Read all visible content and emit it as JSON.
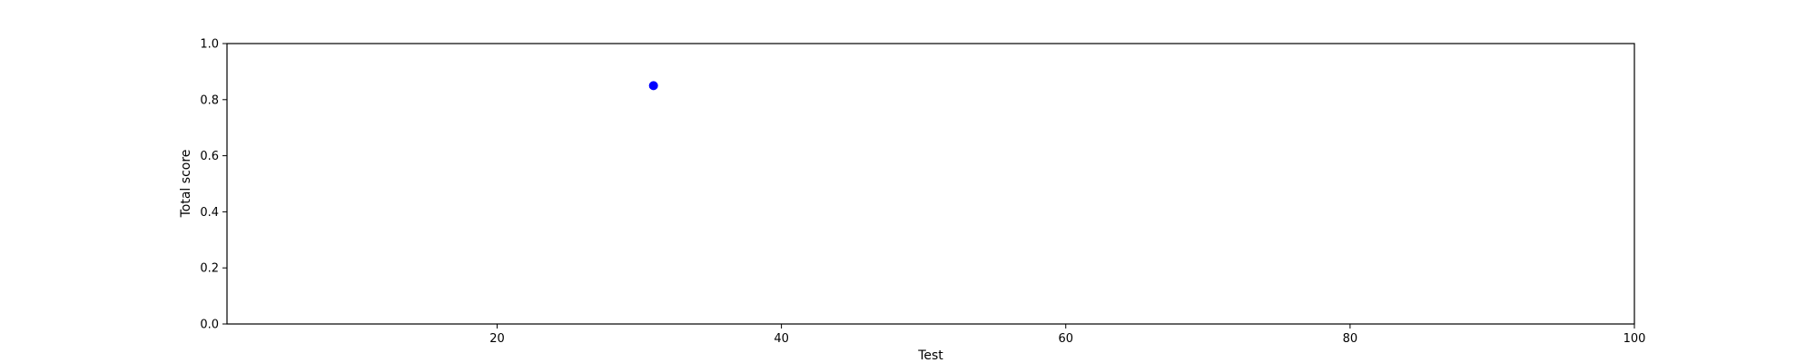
{
  "chart_data": {
    "type": "scatter",
    "title": "",
    "xlabel": "Test",
    "ylabel": "Total score",
    "xlim": [
      1,
      100
    ],
    "ylim": [
      0.0,
      1.0
    ],
    "xticks": [
      20,
      40,
      60,
      80,
      100
    ],
    "yticks": [
      0.0,
      0.2,
      0.4,
      0.6,
      0.8,
      1.0
    ],
    "xtick_labels": [
      "20",
      "40",
      "60",
      "80",
      "100"
    ],
    "ytick_labels": [
      "0.0",
      "0.2",
      "0.4",
      "0.6",
      "0.8",
      "1.0"
    ],
    "grid": false,
    "series": [
      {
        "color": "#0000ff",
        "points": [
          {
            "x": 31,
            "y": 0.85
          }
        ]
      }
    ]
  }
}
